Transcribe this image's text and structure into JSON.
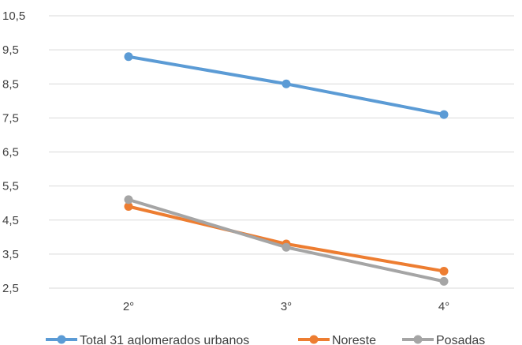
{
  "chart_data": {
    "type": "line",
    "categories": [
      "2°",
      "3°",
      "4°"
    ],
    "ylim": [
      2.5,
      10.5
    ],
    "yticks": [
      "10,5",
      "9,5",
      "8,5",
      "7,5",
      "6,5",
      "5,5",
      "4,5",
      "3,5",
      "2,5"
    ],
    "ytick_values": [
      10.5,
      9.5,
      8.5,
      7.5,
      6.5,
      5.5,
      4.5,
      3.5,
      2.5
    ],
    "grid": true,
    "legend_position": "bottom",
    "series": [
      {
        "name": "Total 31 aglomerados urbanos",
        "color": "#5B9BD5",
        "values": [
          9.3,
          8.5,
          7.6
        ]
      },
      {
        "name": "Noreste",
        "color": "#ED7D31",
        "values": [
          4.9,
          3.8,
          3.0
        ]
      },
      {
        "name": "Posadas",
        "color": "#A5A5A5",
        "values": [
          5.1,
          3.7,
          2.7
        ]
      }
    ]
  }
}
